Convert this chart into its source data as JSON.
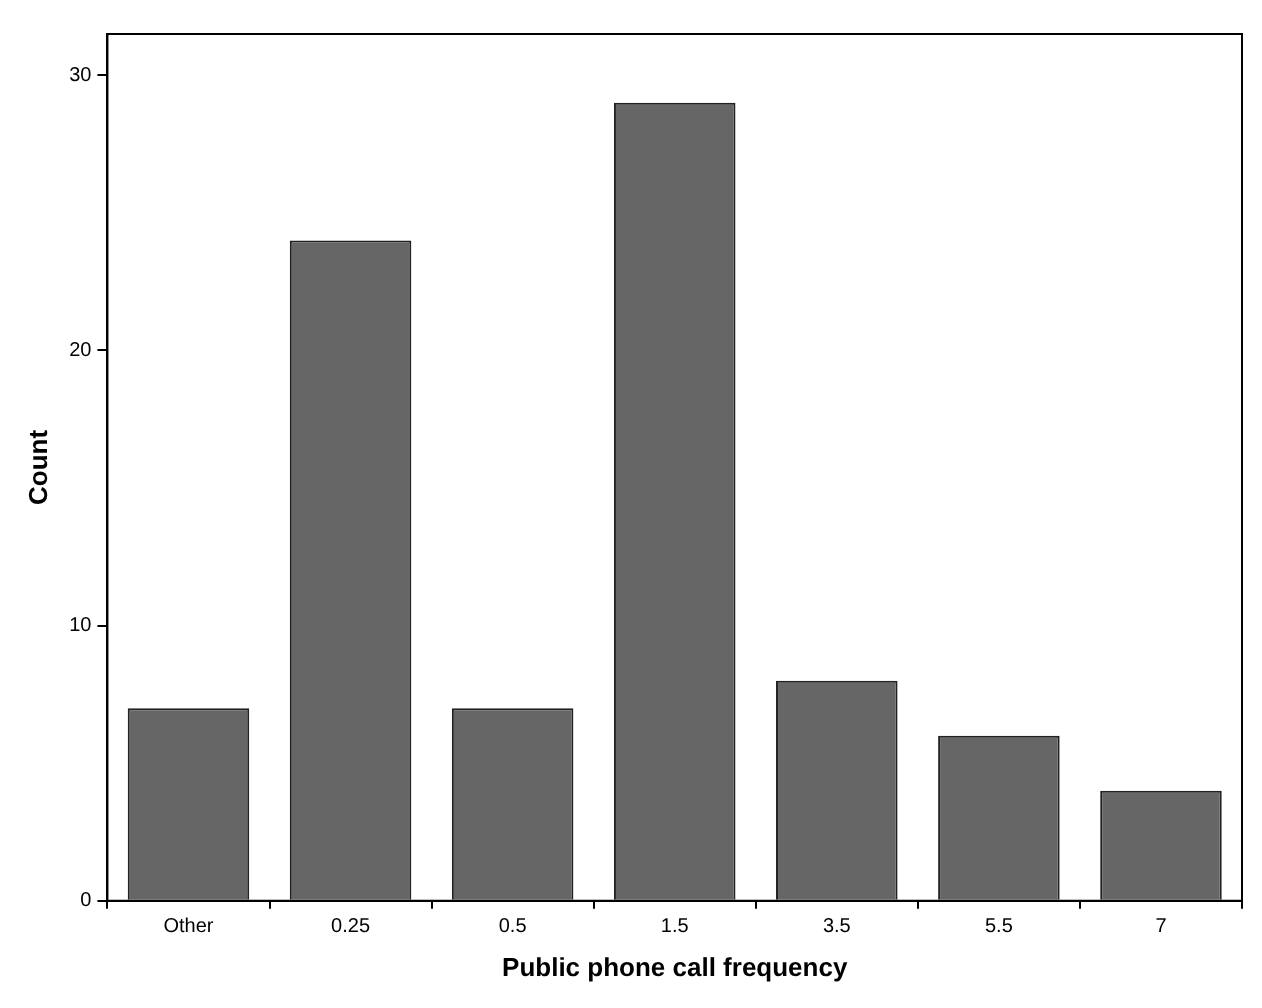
{
  "chart_data": {
    "type": "bar",
    "xlabel": "Public phone call frequency",
    "ylabel": "Count",
    "categories": [
      "Other",
      "0.25",
      "0.5",
      "1.5",
      "3.5",
      "5.5",
      "7"
    ],
    "values": [
      7,
      24,
      7,
      29,
      8,
      6,
      4
    ],
    "color": "#666666",
    "ylim": [
      0,
      31.5
    ],
    "yticks": [
      0,
      10,
      20,
      30
    ],
    "grid": false,
    "legend": false
  }
}
